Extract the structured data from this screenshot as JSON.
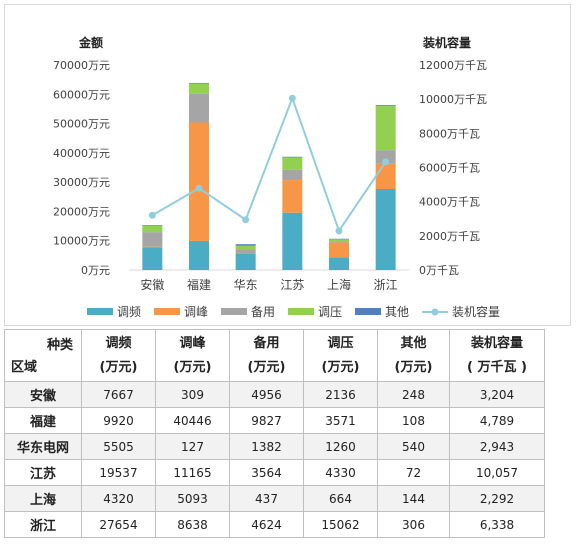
{
  "chart_data": {
    "type": "bar",
    "stacked": true,
    "categories": [
      "安徽",
      "福建",
      "华东",
      "江苏",
      "上海",
      "浙江"
    ],
    "left_axis_title": "金额",
    "right_axis_title": "装机容量",
    "left_ticks": [
      "0万元",
      "10000万元",
      "20000万元",
      "30000万元",
      "40000万元",
      "50000万元",
      "60000万元",
      "70000万元"
    ],
    "right_ticks": [
      "0万千瓦",
      "2000万千瓦",
      "4000万千瓦",
      "6000万千瓦",
      "8000万千瓦",
      "10000万千瓦",
      "12000万千瓦"
    ],
    "ylim_left": [
      0,
      70000
    ],
    "ylim_right": [
      0,
      12000
    ],
    "series": [
      {
        "name": "调频",
        "color": "#4bacc6",
        "values": [
          7667,
          9920,
          5505,
          19537,
          4320,
          27654
        ]
      },
      {
        "name": "调峰",
        "color": "#f79646",
        "values": [
          309,
          40446,
          127,
          11165,
          5093,
          8638
        ]
      },
      {
        "name": "备用",
        "color": "#a5a5a5",
        "values": [
          4956,
          9827,
          1382,
          3564,
          437,
          4624
        ]
      },
      {
        "name": "调压",
        "color": "#92d050",
        "values": [
          2136,
          3571,
          1260,
          4330,
          664,
          15062
        ]
      },
      {
        "name": "其他",
        "color": "#4f81bd",
        "values": [
          248,
          108,
          540,
          72,
          144,
          306
        ]
      }
    ],
    "line_series": {
      "name": "装机容量",
      "color": "#92cddc",
      "axis": "right",
      "values": [
        3204,
        4789,
        2943,
        10057,
        2292,
        6338
      ]
    },
    "legend_position": "bottom",
    "grid": false
  },
  "table": {
    "corner_top": "种类",
    "corner_bottom": "区域",
    "headers": [
      {
        "name": "调频",
        "unit": "(万元)"
      },
      {
        "name": "调峰",
        "unit": "(万元)"
      },
      {
        "name": "备用",
        "unit": "(万元)"
      },
      {
        "name": "调压",
        "unit": "(万元)"
      },
      {
        "name": "其他",
        "unit": "(万元)"
      },
      {
        "name": "装机容量",
        "unit": "( 万千瓦 )"
      }
    ],
    "rows": [
      {
        "region": "安徽",
        "cells": [
          "7667",
          "309",
          "4956",
          "2136",
          "248",
          "3,204"
        ]
      },
      {
        "region": "福建",
        "cells": [
          "9920",
          "40446",
          "9827",
          "3571",
          "108",
          "4,789"
        ]
      },
      {
        "region": "华东电网",
        "cells": [
          "5505",
          "127",
          "1382",
          "1260",
          "540",
          "2,943"
        ]
      },
      {
        "region": "江苏",
        "cells": [
          "19537",
          "11165",
          "3564",
          "4330",
          "72",
          "10,057"
        ]
      },
      {
        "region": "上海",
        "cells": [
          "4320",
          "5093",
          "437",
          "664",
          "144",
          "2,292"
        ]
      },
      {
        "region": "浙江",
        "cells": [
          "27654",
          "8638",
          "4624",
          "15062",
          "306",
          "6,338"
        ]
      }
    ]
  }
}
